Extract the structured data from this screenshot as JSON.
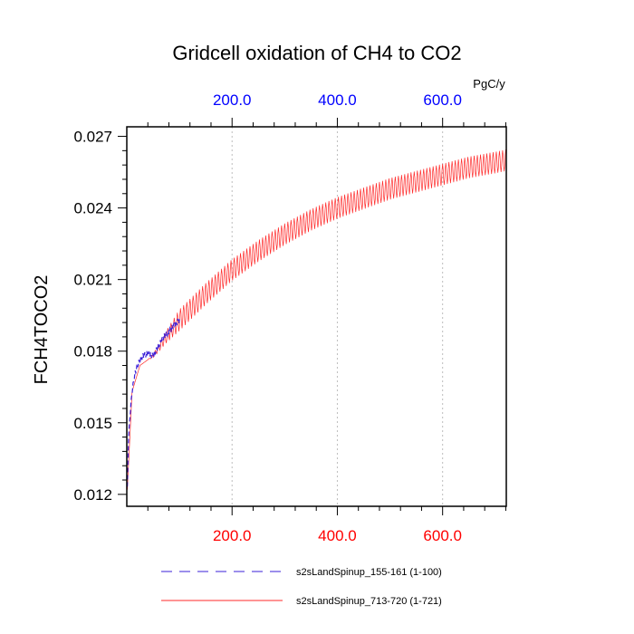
{
  "chart_data": {
    "type": "line",
    "title": "Gridcell oxidation of CH4 to CO2",
    "ylabel": "FCH4TOCO2",
    "top_axis_units": "PgC/y",
    "xlim": [
      0,
      721
    ],
    "ylim": [
      0.0115,
      0.0274
    ],
    "yticks": [
      0.012,
      0.015,
      0.018,
      0.021,
      0.024,
      0.027
    ],
    "ytick_labels": [
      "0.012",
      "0.015",
      "0.018",
      "0.021",
      "0.024",
      "0.027"
    ],
    "xticks": [
      200,
      400,
      600
    ],
    "xtick_labels_bottom": [
      "200.0",
      "400.0",
      "600.0"
    ],
    "xtick_labels_top": [
      "200.0",
      "400.0",
      "600.0"
    ],
    "grid_vertical": true,
    "legend_position": "bottom",
    "colors": {
      "series1": "#3a1fd8",
      "series2": "#ff2a2a",
      "bottom_axis": "#ff0000",
      "top_axis": "#0000ff"
    },
    "series": [
      {
        "name": "s2sLandSpinup_155-161 (1-100)",
        "style": "dashed",
        "color": "#3a1fd8",
        "x": [
          1,
          3,
          6,
          10,
          15,
          20,
          30,
          40,
          50,
          60,
          70,
          80,
          90,
          100
        ],
        "y": [
          0.0122,
          0.0142,
          0.0153,
          0.0163,
          0.017,
          0.0174,
          0.0178,
          0.0179,
          0.0178,
          0.0182,
          0.0186,
          0.0188,
          0.0191,
          0.0193
        ]
      },
      {
        "name": "s2sLandSpinup_713-720 (1-721)",
        "style": "solid",
        "color": "#ff2a2a",
        "x": [
          1,
          10,
          25,
          50,
          75,
          100,
          150,
          200,
          250,
          300,
          350,
          400,
          450,
          500,
          550,
          600,
          650,
          700,
          721
        ],
        "y": [
          0.0122,
          0.0163,
          0.0174,
          0.0178,
          0.0186,
          0.0193,
          0.0204,
          0.0214,
          0.0222,
          0.0229,
          0.0235,
          0.024,
          0.0244,
          0.0248,
          0.0251,
          0.0254,
          0.0257,
          0.0259,
          0.026
        ],
        "seasonal_amplitude": 0.00045
      }
    ]
  }
}
